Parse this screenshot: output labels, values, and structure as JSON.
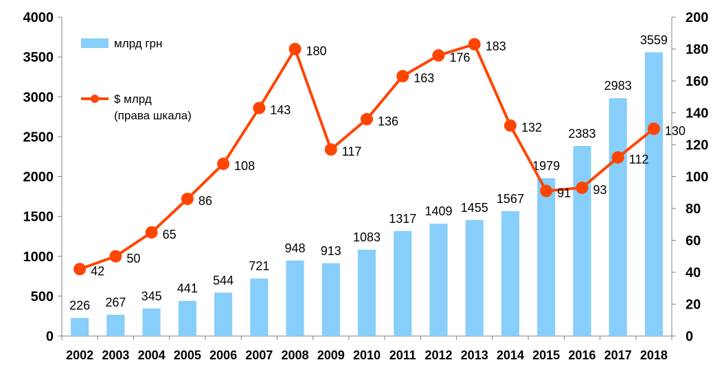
{
  "chart_data": {
    "type": "bar",
    "categories": [
      "2002",
      "2003",
      "2004",
      "2005",
      "2006",
      "2007",
      "2008",
      "2009",
      "2010",
      "2011",
      "2012",
      "2013",
      "2014",
      "2015",
      "2016",
      "2017",
      "2018"
    ],
    "series": [
      {
        "name": "млрд  грн",
        "type": "bar",
        "axis": "left",
        "values": [
          226,
          267,
          345,
          441,
          544,
          721,
          948,
          913,
          1083,
          1317,
          1409,
          1455,
          1567,
          1979,
          2383,
          2983,
          3559
        ],
        "color": "#87CEFA"
      },
      {
        "name": "$ млрд",
        "name_line2": "(права шкала)",
        "type": "line",
        "axis": "right",
        "values": [
          42,
          50,
          65,
          86,
          108,
          143,
          180,
          117,
          136,
          163,
          176,
          183,
          132,
          91,
          93,
          112,
          130
        ],
        "color": "#FF4500"
      }
    ],
    "ylim_left": [
      0,
      4000
    ],
    "yticks_left": [
      0,
      500,
      1000,
      1500,
      2000,
      2500,
      3000,
      3500,
      4000
    ],
    "ylim_right": [
      0,
      200
    ],
    "yticks_right": [
      0,
      20,
      40,
      60,
      80,
      100,
      120,
      140,
      160,
      180,
      200
    ],
    "grid": false,
    "legend_position": "top-left"
  }
}
